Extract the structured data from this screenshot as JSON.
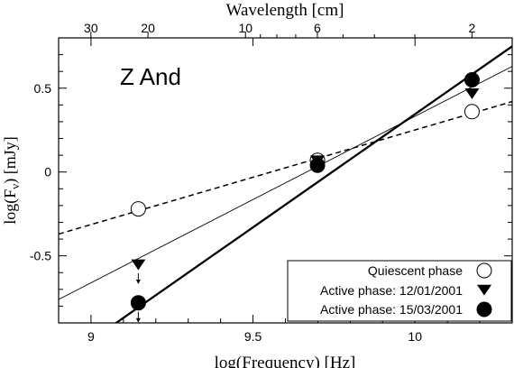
{
  "chart_data": {
    "type": "scatter",
    "annotation": "Z And",
    "xlabel": "log(Frequency)  [Hz]",
    "ylabel": "log(F",
    "ylabel_sub": "ν",
    "ylabel_tail": ")  [mJy]",
    "xlim": [
      8.9,
      10.3
    ],
    "ylim": [
      -0.9,
      0.8
    ],
    "x_ticks": [
      9,
      9.5,
      10
    ],
    "x_tick_labels": [
      "9",
      "9.5",
      "10"
    ],
    "y_ticks": [
      0.5,
      0,
      -0.5
    ],
    "y_tick_labels": [
      "0.5",
      "0",
      "-0.5"
    ],
    "top_axis": {
      "label": "Wavelength   [cm]",
      "tick_labels": [
        "30",
        "20",
        "10",
        "6",
        "2"
      ],
      "tick_values_cm": [
        30,
        20,
        10,
        6,
        2
      ]
    },
    "legend_position": "bottom-right",
    "series": [
      {
        "name": "Quiescent phase",
        "marker": "open-circle",
        "points": [
          [
            9.146,
            -0.22
          ],
          [
            9.699,
            0.07
          ],
          [
            10.176,
            0.36
          ]
        ],
        "fit": {
          "style": "dashed",
          "x": [
            8.9,
            10.3
          ],
          "y": [
            -0.37,
            0.42
          ]
        }
      },
      {
        "name": "Active phase: 12/01/2001",
        "marker": "down-triangle",
        "upper_limit": [
          true,
          false,
          false
        ],
        "points": [
          [
            9.146,
            -0.55
          ],
          [
            9.699,
            0.07
          ],
          [
            10.176,
            0.47
          ]
        ],
        "fit": {
          "style": "thin",
          "x": [
            8.9,
            10.3
          ],
          "y": [
            -0.76,
            0.63
          ]
        }
      },
      {
        "name": "Active phase: 15/03/2001",
        "marker": "filled-circle",
        "upper_limit": [
          true,
          false,
          false
        ],
        "points": [
          [
            9.146,
            -0.78
          ],
          [
            9.699,
            0.04
          ],
          [
            10.176,
            0.55
          ]
        ],
        "fit": {
          "style": "thick",
          "x": [
            8.9,
            10.3
          ],
          "y": [
            -1.14,
            0.75
          ]
        }
      }
    ]
  }
}
